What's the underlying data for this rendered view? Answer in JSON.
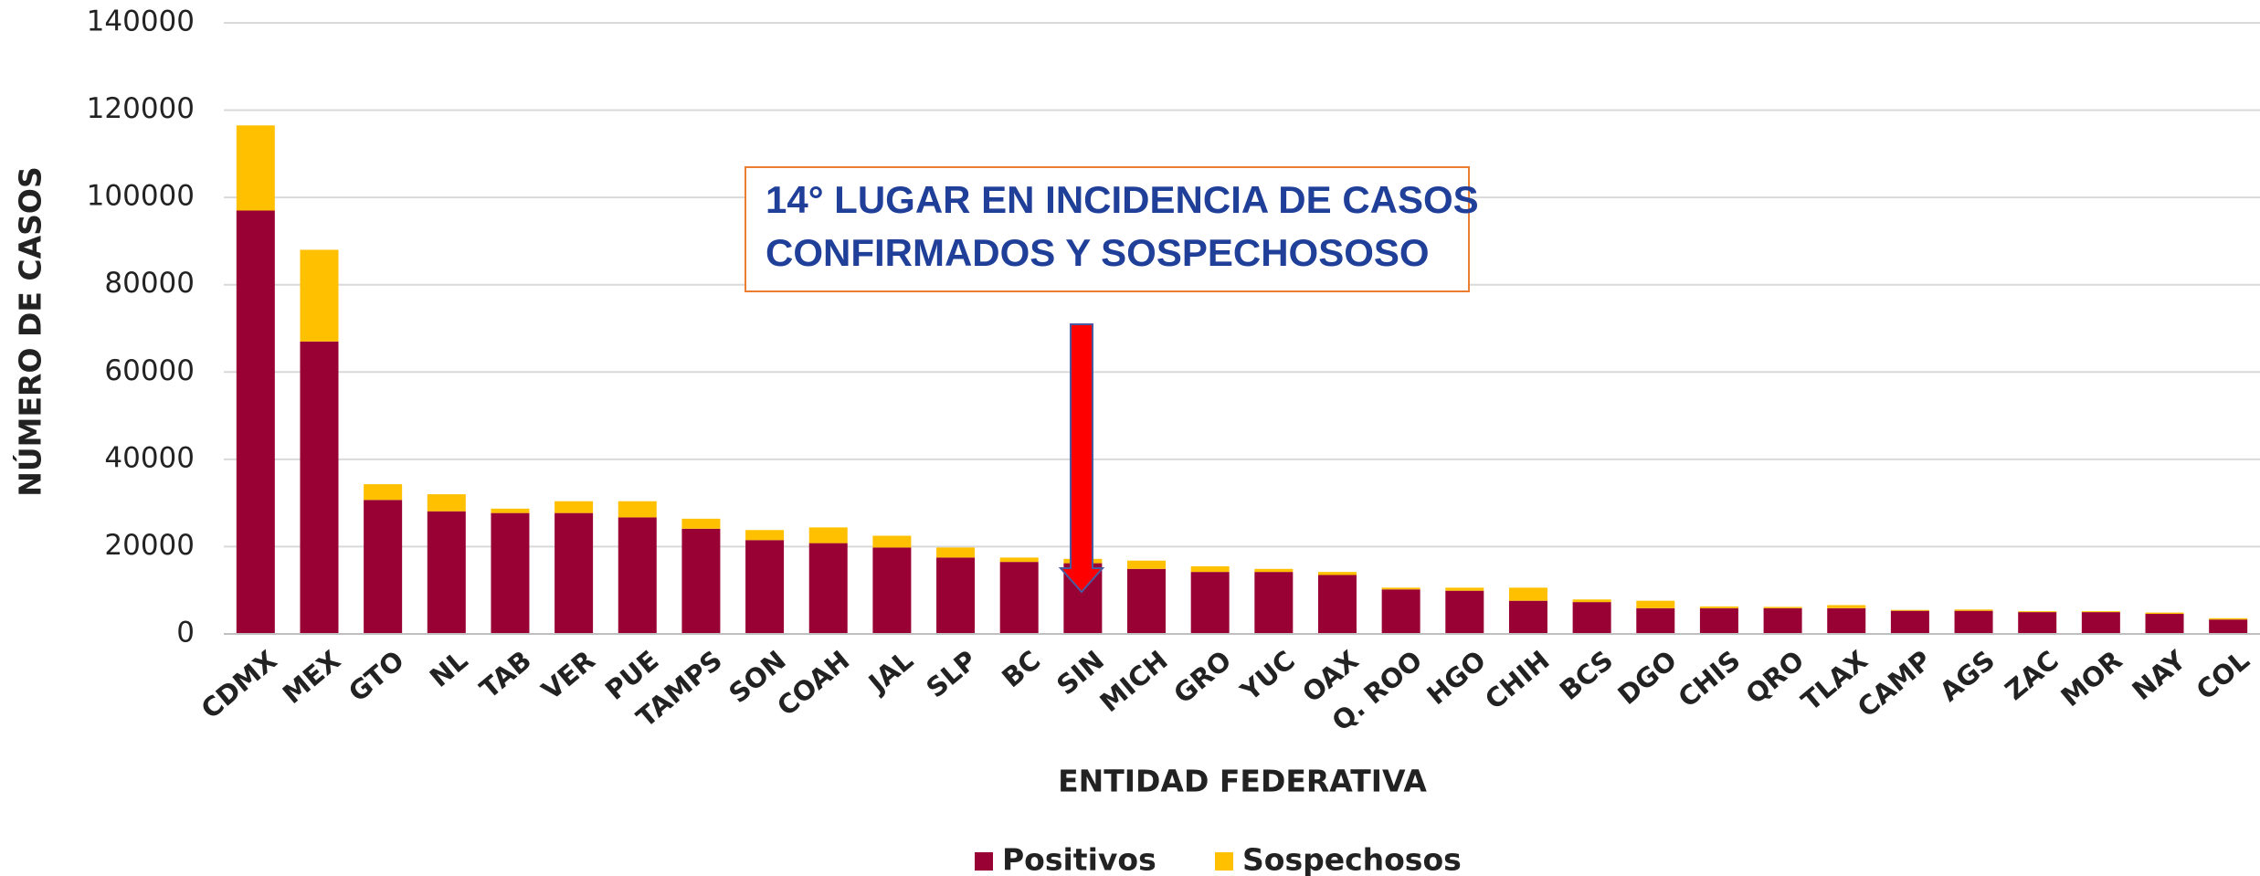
{
  "chart_data": {
    "type": "stacked_bar",
    "annotation": [
      "14° LUGAR EN INCIDENCIA DE CASOS",
      "CONFIRMADOS Y SOSPECHOSOSO"
    ],
    "x_label": "ENTIDAD FEDERATIVA",
    "y_label": "NÚMERO DE CASOS",
    "categories": [
      "CDMX",
      "MEX",
      "GTO",
      "NL",
      "TAB",
      "VER",
      "PUE",
      "TAMPS",
      "SON",
      "COAH",
      "JAL",
      "SLP",
      "BC",
      "SIN",
      "MICH",
      "GRO",
      "YUC",
      "OAX",
      "Q. ROO",
      "HGO",
      "CHIH",
      "BCS",
      "DGO",
      "CHIS",
      "QRO",
      "TLAX",
      "CAMP",
      "AGS",
      "ZAC",
      "MOR",
      "NAY",
      "COL"
    ],
    "series": [
      {
        "name": "Positivos",
        "color": "#990033",
        "values": [
          97000,
          67000,
          30700,
          28100,
          27700,
          27700,
          26700,
          24100,
          21500,
          20800,
          19800,
          17500,
          16500,
          16200,
          14900,
          14200,
          14200,
          13500,
          10200,
          9900,
          7600,
          7300,
          5900,
          5900,
          5900,
          5900,
          5300,
          5300,
          5000,
          5000,
          4600,
          3300
        ]
      },
      {
        "name": "Sospechosos",
        "color": "#ffc000",
        "values": [
          19500,
          21000,
          3600,
          3900,
          1000,
          2700,
          3700,
          2300,
          2300,
          3600,
          2700,
          2300,
          1000,
          1000,
          1900,
          1300,
          700,
          700,
          400,
          700,
          3000,
          600,
          1700,
          400,
          300,
          700,
          200,
          300,
          200,
          200,
          300,
          300
        ]
      }
    ],
    "ylim": [
      0,
      140000
    ],
    "yticks": [
      0,
      20000,
      40000,
      60000,
      80000,
      100000,
      120000,
      140000
    ],
    "grid": true
  }
}
